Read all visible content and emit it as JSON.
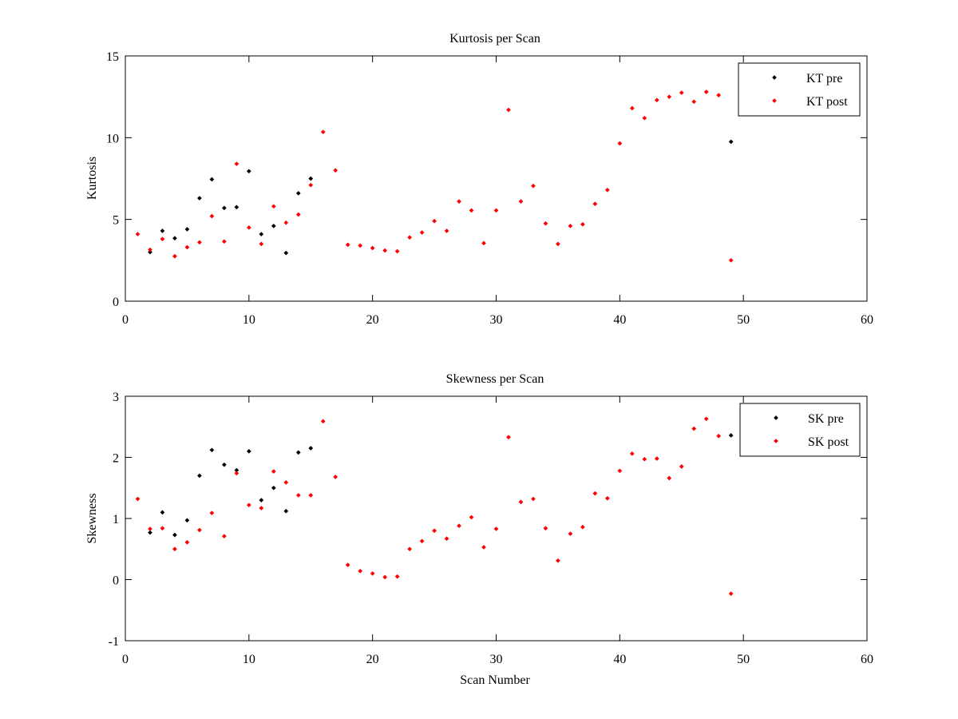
{
  "chart_data": [
    {
      "type": "scatter",
      "title": "Kurtosis per Scan",
      "xlabel": "",
      "ylabel": "Kurtosis",
      "xlim": [
        0,
        60
      ],
      "ylim": [
        0,
        15
      ],
      "xticks": [
        "0",
        "10",
        "20",
        "30",
        "40",
        "50",
        "60"
      ],
      "yticks": [
        "0",
        "5",
        "10",
        "15"
      ],
      "grid": false,
      "legend_position": "top-right",
      "series": [
        {
          "name": "KT pre",
          "color": "#000000",
          "points": [
            [
              2,
              3.0
            ],
            [
              3,
              4.3
            ],
            [
              4,
              3.85
            ],
            [
              5,
              4.4
            ],
            [
              6,
              6.3
            ],
            [
              7,
              7.45
            ],
            [
              8,
              5.7
            ],
            [
              9,
              5.75
            ],
            [
              10,
              7.95
            ],
            [
              11,
              4.1
            ],
            [
              12,
              4.6
            ],
            [
              13,
              2.95
            ],
            [
              14,
              6.6
            ],
            [
              15,
              7.5
            ],
            [
              49,
              9.75
            ]
          ]
        },
        {
          "name": "KT post",
          "color": "#ff0000",
          "points": [
            [
              1,
              4.1
            ],
            [
              2,
              3.15
            ],
            [
              3,
              3.8
            ],
            [
              4,
              2.75
            ],
            [
              5,
              3.3
            ],
            [
              6,
              3.6
            ],
            [
              7,
              5.2
            ],
            [
              8,
              3.65
            ],
            [
              9,
              8.4
            ],
            [
              10,
              4.5
            ],
            [
              11,
              3.5
            ],
            [
              12,
              5.8
            ],
            [
              13,
              4.8
            ],
            [
              14,
              5.3
            ],
            [
              15,
              7.1
            ],
            [
              16,
              10.35
            ],
            [
              17,
              8.0
            ],
            [
              18,
              3.45
            ],
            [
              19,
              3.4
            ],
            [
              20,
              3.25
            ],
            [
              21,
              3.1
            ],
            [
              22,
              3.05
            ],
            [
              23,
              3.9
            ],
            [
              24,
              4.2
            ],
            [
              25,
              4.9
            ],
            [
              26,
              4.3
            ],
            [
              27,
              6.1
            ],
            [
              28,
              5.55
            ],
            [
              29,
              3.55
            ],
            [
              30,
              5.55
            ],
            [
              31,
              11.7
            ],
            [
              32,
              6.1
            ],
            [
              33,
              7.05
            ],
            [
              34,
              4.75
            ],
            [
              35,
              3.5
            ],
            [
              36,
              4.6
            ],
            [
              37,
              4.7
            ],
            [
              38,
              5.95
            ],
            [
              39,
              6.8
            ],
            [
              40,
              9.65
            ],
            [
              41,
              11.8
            ],
            [
              42,
              11.2
            ],
            [
              43,
              12.3
            ],
            [
              44,
              12.5
            ],
            [
              45,
              12.75
            ],
            [
              46,
              12.2
            ],
            [
              47,
              12.8
            ],
            [
              48,
              12.6
            ],
            [
              49,
              2.5
            ]
          ]
        }
      ]
    },
    {
      "type": "scatter",
      "title": "Skewness per Scan",
      "xlabel": "Scan Number",
      "ylabel": "Skewness",
      "xlim": [
        0,
        60
      ],
      "ylim": [
        -1,
        3
      ],
      "xticks": [
        "0",
        "10",
        "20",
        "30",
        "40",
        "50",
        "60"
      ],
      "yticks": [
        "-1",
        "0",
        "1",
        "2",
        "3"
      ],
      "grid": false,
      "legend_position": "top-right",
      "series": [
        {
          "name": "SK pre",
          "color": "#000000",
          "points": [
            [
              2,
              0.77
            ],
            [
              3,
              1.1
            ],
            [
              4,
              0.73
            ],
            [
              5,
              0.97
            ],
            [
              6,
              1.7
            ],
            [
              7,
              2.12
            ],
            [
              8,
              1.88
            ],
            [
              9,
              1.79
            ],
            [
              10,
              2.1
            ],
            [
              11,
              1.3
            ],
            [
              12,
              1.5
            ],
            [
              13,
              1.12
            ],
            [
              14,
              2.08
            ],
            [
              15,
              2.15
            ],
            [
              49,
              2.36
            ]
          ]
        },
        {
          "name": "SK post",
          "color": "#ff0000",
          "points": [
            [
              1,
              1.32
            ],
            [
              2,
              0.83
            ],
            [
              3,
              0.84
            ],
            [
              4,
              0.5
            ],
            [
              5,
              0.61
            ],
            [
              6,
              0.81
            ],
            [
              7,
              1.09
            ],
            [
              8,
              0.71
            ],
            [
              9,
              1.74
            ],
            [
              10,
              1.22
            ],
            [
              11,
              1.17
            ],
            [
              12,
              1.77
            ],
            [
              13,
              1.59
            ],
            [
              14,
              1.38
            ],
            [
              15,
              1.38
            ],
            [
              16,
              2.59
            ],
            [
              17,
              1.68
            ],
            [
              18,
              0.24
            ],
            [
              19,
              0.14
            ],
            [
              20,
              0.1
            ],
            [
              21,
              0.04
            ],
            [
              22,
              0.05
            ],
            [
              23,
              0.5
            ],
            [
              24,
              0.63
            ],
            [
              25,
              0.8
            ],
            [
              26,
              0.67
            ],
            [
              27,
              0.88
            ],
            [
              28,
              1.02
            ],
            [
              29,
              0.53
            ],
            [
              30,
              0.83
            ],
            [
              31,
              2.33
            ],
            [
              32,
              1.27
            ],
            [
              33,
              1.32
            ],
            [
              34,
              0.84
            ],
            [
              35,
              0.31
            ],
            [
              36,
              0.75
            ],
            [
              37,
              0.86
            ],
            [
              38,
              1.41
            ],
            [
              39,
              1.33
            ],
            [
              40,
              1.78
            ],
            [
              41,
              2.06
            ],
            [
              42,
              1.97
            ],
            [
              43,
              1.98
            ],
            [
              44,
              1.66
            ],
            [
              45,
              1.85
            ],
            [
              46,
              2.47
            ],
            [
              47,
              2.63
            ],
            [
              48,
              2.35
            ],
            [
              49,
              -0.23
            ]
          ]
        }
      ]
    }
  ]
}
